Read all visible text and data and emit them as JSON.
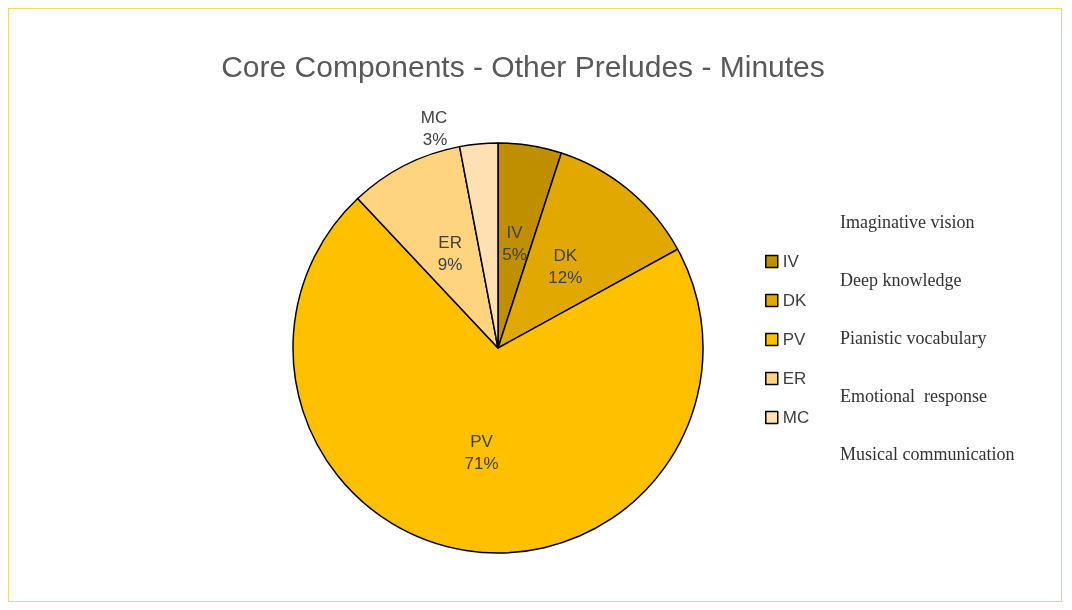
{
  "chart_data": {
    "type": "pie",
    "title": "Core Components - Other Preludes - Minutes",
    "categories": [
      "IV",
      "DK",
      "PV",
      "ER",
      "MC"
    ],
    "values": [
      5,
      12,
      71,
      9,
      3
    ],
    "colors": [
      "#bf8f00",
      "#e0a800",
      "#ffc000",
      "#ffd47f",
      "#ffe0b3"
    ],
    "value_labels": [
      "5%",
      "12%",
      "71%",
      "9%",
      "3%"
    ],
    "legend": "right",
    "annotations": [
      "Imaginative vision",
      "Deep knowledge",
      "Pianistic vocabulary",
      "Emotional  response",
      "Musical communication"
    ]
  }
}
